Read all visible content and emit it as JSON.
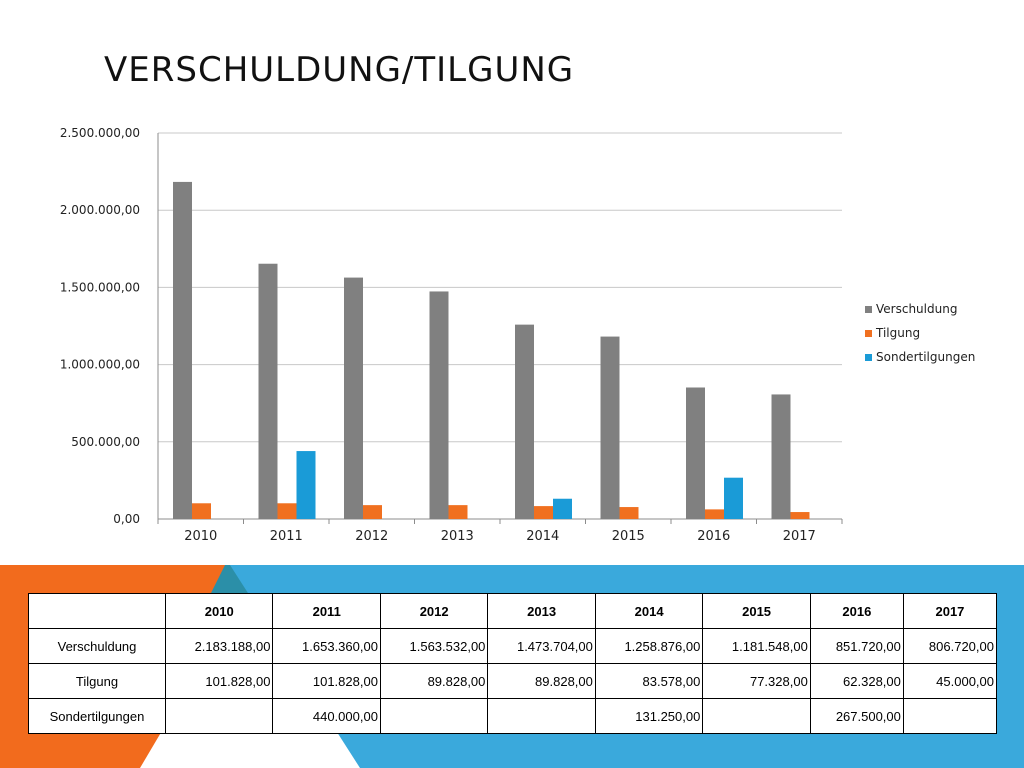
{
  "slide": {
    "title": "VERSCHULDUNG/TILGUNG"
  },
  "colors": {
    "verschuldung": "#808080",
    "tilgung": "#f07020",
    "sondertilgungen": "#1a9bd7",
    "band_orange": "#f26b1d",
    "band_blue": "#3aa9dc",
    "band_teal": "#2b8fa8"
  },
  "chart_data": {
    "type": "bar",
    "categories": [
      "2010",
      "2011",
      "2012",
      "2013",
      "2014",
      "2015",
      "2016",
      "2017"
    ],
    "series": [
      {
        "name": "Verschuldung",
        "values": [
          2183188,
          1653360,
          1563532,
          1473704,
          1258876,
          1181548,
          851720,
          806720
        ]
      },
      {
        "name": "Tilgung",
        "values": [
          101828,
          101828,
          89828,
          89828,
          83578,
          77328,
          62328,
          45000
        ]
      },
      {
        "name": "Sondertilgungen",
        "values": [
          null,
          440000,
          null,
          null,
          131250,
          null,
          267500,
          null
        ]
      }
    ],
    "ylim": [
      0,
      2500000
    ],
    "yticks": [
      "0,00",
      "500.000,00",
      "1.000.000,00",
      "1.500.000,00",
      "2.000.000,00",
      "2.500.000,00"
    ],
    "grid": true,
    "legend": "right"
  },
  "table": {
    "header": [
      "",
      "2010",
      "2011",
      "2012",
      "2013",
      "2014",
      "2015",
      "2016",
      "2017"
    ],
    "rows": [
      [
        "Verschuldung",
        "2.183.188,00",
        "1.653.360,00",
        "1.563.532,00",
        "1.473.704,00",
        "1.258.876,00",
        "1.181.548,00",
        "851.720,00",
        "806.720,00"
      ],
      [
        "Tilgung",
        "101.828,00",
        "101.828,00",
        "89.828,00",
        "89.828,00",
        "83.578,00",
        "77.328,00",
        "62.328,00",
        "45.000,00"
      ],
      [
        "Sondertilgungen",
        "",
        "440.000,00",
        "",
        "",
        "131.250,00",
        "",
        "267.500,00",
        ""
      ]
    ]
  }
}
